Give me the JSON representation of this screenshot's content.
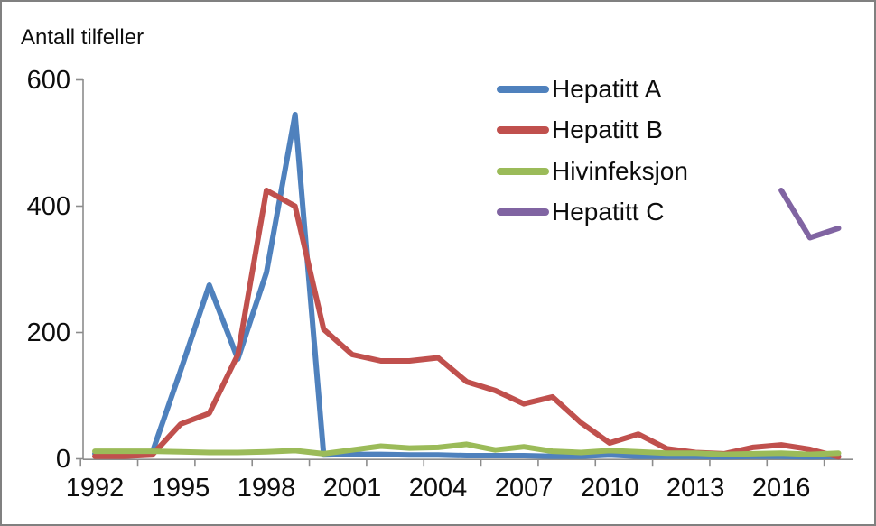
{
  "frame": {
    "border_color": "#808080",
    "background": "#ffffff",
    "axis_color": "#8c8c8c",
    "text_color": "#0d0d0d"
  },
  "chart_data": {
    "type": "line",
    "title": "Antall tilfeller",
    "x": [
      1992,
      1993,
      1994,
      1995,
      1996,
      1997,
      1998,
      1999,
      2000,
      2001,
      2002,
      2003,
      2004,
      2005,
      2006,
      2007,
      2008,
      2009,
      2010,
      2011,
      2012,
      2013,
      2014,
      2015,
      2016,
      2017,
      2018
    ],
    "x_tick_labels": [
      "1992",
      "1995",
      "1998",
      "2001",
      "2004",
      "2007",
      "2010",
      "2013",
      "2016"
    ],
    "yticks": [
      0,
      200,
      400,
      600
    ],
    "ylim": [
      0,
      600
    ],
    "grid": false,
    "legend_position": "upper center-right, no border",
    "series": [
      {
        "name": "Hepatitt A",
        "color": "#4F81BD",
        "values": [
          8,
          8,
          9,
          140,
          275,
          158,
          295,
          545,
          6,
          7,
          7,
          6,
          6,
          5,
          5,
          5,
          4,
          4,
          6,
          4,
          4,
          4,
          3,
          4,
          4,
          3,
          4
        ]
      },
      {
        "name": "Hepatitt B",
        "color": "#C0504D",
        "values": [
          4,
          4,
          6,
          55,
          72,
          165,
          425,
          400,
          205,
          165,
          155,
          155,
          160,
          122,
          108,
          87,
          98,
          57,
          25,
          39,
          16,
          10,
          8,
          18,
          22,
          15,
          3
        ]
      },
      {
        "name": "Hivinfeksjon",
        "color": "#9BBB59",
        "values": [
          12,
          12,
          12,
          11,
          10,
          10,
          11,
          13,
          8,
          14,
          20,
          17,
          18,
          23,
          14,
          19,
          12,
          10,
          13,
          11,
          9,
          9,
          7,
          8,
          9,
          7,
          9
        ]
      },
      {
        "name": "Hepatitt C",
        "color": "#8064A2",
        "values": [
          null,
          null,
          null,
          null,
          null,
          null,
          null,
          null,
          null,
          null,
          null,
          null,
          null,
          null,
          null,
          null,
          null,
          null,
          null,
          null,
          null,
          null,
          null,
          null,
          425,
          350,
          365
        ]
      }
    ]
  }
}
